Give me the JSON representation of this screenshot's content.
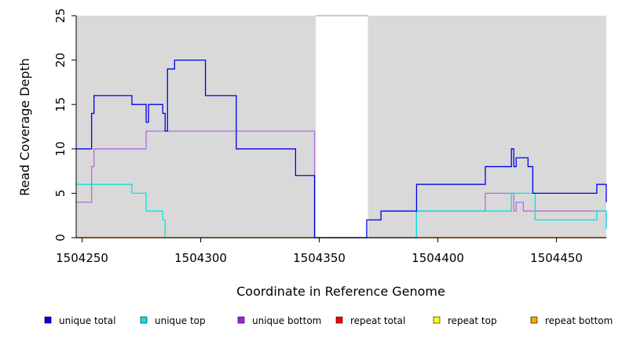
{
  "chart_data": {
    "type": "line",
    "title": "",
    "xlabel": "Coordinate in Reference Genome",
    "ylabel": "Read Coverage Depth",
    "xlim": [
      1504247.5,
      1504471
    ],
    "ylim": [
      0,
      25
    ],
    "x_ticks": [
      1504250,
      1504300,
      1504350,
      1504400,
      1504450
    ],
    "x_tick_labels": [
      "1504250",
      "1504300",
      "1504350",
      "1504400",
      "1504450"
    ],
    "y_ticks": [
      0,
      5,
      10,
      15,
      20,
      25
    ],
    "y_tick_labels": [
      "0",
      "5",
      "10",
      "15",
      "20",
      "25"
    ],
    "grid": false,
    "background_color": "#d9d9d9",
    "gap_region": [
      1504348.5,
      1504370.5
    ],
    "gap_color": "#ffffff",
    "legend_position": "bottom",
    "series": [
      {
        "name": "unique total",
        "color": "#0000ee",
        "x": [
          1504247.5,
          1504254,
          1504255,
          1504271,
          1504277,
          1504278,
          1504284,
          1504285,
          1504286,
          1504289,
          1504302,
          1504315,
          1504340,
          1504348,
          1504370,
          1504376,
          1504391,
          1504420,
          1504431,
          1504432,
          1504433,
          1504438,
          1504440,
          1504467,
          1504471
        ],
        "y": [
          10,
          14,
          16,
          15,
          13,
          15,
          14,
          12,
          19,
          20,
          16,
          10,
          7,
          0,
          2,
          3,
          6,
          8,
          10,
          8,
          9,
          8,
          5,
          6,
          4
        ]
      },
      {
        "name": "unique top",
        "color": "#00e5e5",
        "x": [
          1504247.5,
          1504271,
          1504277,
          1504284,
          1504285,
          1504391,
          1504431,
          1504441,
          1504467,
          1504471
        ],
        "y": [
          6,
          5,
          3,
          2,
          0,
          3,
          5,
          2,
          3,
          1
        ]
      },
      {
        "name": "unique bottom",
        "color": "#b06ee0",
        "x": [
          1504247.5,
          1504254,
          1504255,
          1504277,
          1504286,
          1504348,
          1504391,
          1504420,
          1504432,
          1504433,
          1504436,
          1504471
        ],
        "y": [
          4,
          8,
          10,
          12,
          12,
          0,
          3,
          5,
          3,
          4,
          3,
          1
        ]
      },
      {
        "name": "repeat total",
        "color": "#ff0000",
        "x": [
          1504247.5,
          1504471
        ],
        "y": [
          0,
          0
        ]
      },
      {
        "name": "repeat top",
        "color": "#ffff00",
        "x": [
          1504247.5,
          1504471
        ],
        "y": [
          0,
          0
        ]
      },
      {
        "name": "repeat bottom",
        "color": "#ff9900",
        "x": [
          1504247.5,
          1504471
        ],
        "y": [
          0,
          0
        ]
      }
    ]
  },
  "legend": {
    "items": [
      {
        "label": "unique total",
        "color": "#0000ee"
      },
      {
        "label": "unique top",
        "color": "#00e5e5"
      },
      {
        "label": "unique bottom",
        "color": "#a020f0"
      },
      {
        "label": "repeat total",
        "color": "#ff0000"
      },
      {
        "label": "repeat top",
        "color": "#ffff00"
      },
      {
        "label": "repeat bottom",
        "color": "#ffa500"
      }
    ]
  }
}
